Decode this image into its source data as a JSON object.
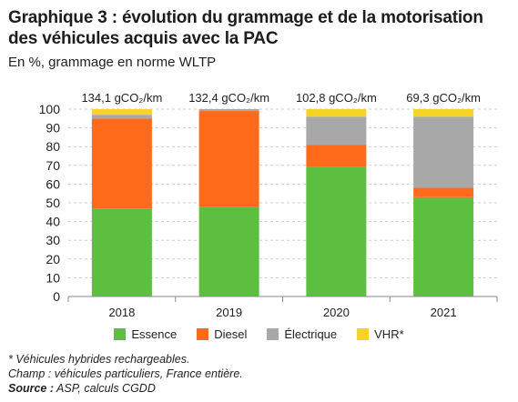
{
  "title": "Graphique 3 : évolution du grammage et de la motorisation des véhicules acquis avec la PAC",
  "subtitle": "En %, grammage en norme WLTP",
  "colors": {
    "Essence": "#5cbf3f",
    "Diesel": "#ff6b1a",
    "Électrique": "#a8a8a8",
    "VHR*": "#f5d327"
  },
  "chart_data": {
    "type": "bar",
    "stacked": true,
    "categories": [
      "2018",
      "2019",
      "2020",
      "2021"
    ],
    "top_labels": [
      "134,1 gCO₂/km",
      "132,4 gCO₂/km",
      "102,8 gCO₂/km",
      "69,3 gCO₂/km"
    ],
    "series": [
      {
        "name": "Essence",
        "values": [
          47,
          48,
          69,
          53
        ]
      },
      {
        "name": "Diesel",
        "values": [
          48,
          51,
          12,
          5
        ]
      },
      {
        "name": "Électrique",
        "values": [
          2,
          1,
          15,
          38
        ]
      },
      {
        "name": "VHR*",
        "values": [
          3,
          0,
          4,
          4
        ]
      }
    ],
    "ylim": [
      0,
      100
    ],
    "yticks": [
      0,
      10,
      20,
      30,
      40,
      50,
      60,
      70,
      80,
      90,
      100
    ],
    "grid": true,
    "legend": "bottom"
  },
  "notes": {
    "line1": "* Véhicules hybrides rechargeables.",
    "line2": "Champ : véhicules particuliers, France entière.",
    "source_label": "Source :",
    "source_text": " ASP, calculs CGDD"
  }
}
